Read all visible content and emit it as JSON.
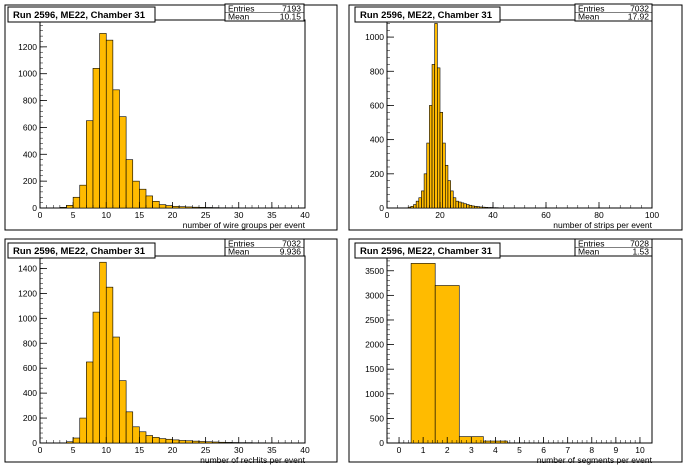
{
  "colors": {
    "fill": "#ffbb00",
    "edge": "#000000",
    "frame": "#000000",
    "background": "#ffffff"
  },
  "chart_data": [
    {
      "type": "bar",
      "title": "Run 2596, ME22, Chamber 31",
      "stats": {
        "entries_label": "Entries",
        "entries": "7193",
        "mean_label": "Mean",
        "mean": "10.15"
      },
      "xlabel": "number of wire groups per event",
      "xlim": [
        0,
        40
      ],
      "ylim": [
        0,
        1400
      ],
      "xticks": [
        0,
        5,
        10,
        15,
        20,
        25,
        30,
        35,
        40
      ],
      "yticks": [
        0,
        200,
        400,
        600,
        800,
        1000,
        1200
      ],
      "bin_width": 1,
      "bin_start": 3,
      "values": [
        5,
        20,
        80,
        170,
        650,
        1040,
        1300,
        1250,
        880,
        680,
        360,
        200,
        140,
        90,
        50,
        25,
        18,
        12,
        10,
        8,
        6,
        5,
        4,
        3,
        2,
        2,
        2
      ]
    },
    {
      "type": "bar",
      "title": "Run 2596, ME22, Chamber 31",
      "stats": {
        "entries_label": "Entries",
        "entries": "7032",
        "mean_label": "Mean",
        "mean": "17.92"
      },
      "xlabel": "number of strips per event",
      "xlim": [
        0,
        100
      ],
      "ylim": [
        0,
        1100
      ],
      "xticks": [
        0,
        20,
        40,
        60,
        80,
        100
      ],
      "yticks": [
        0,
        200,
        400,
        600,
        800,
        1000
      ],
      "bin_width": 1,
      "bin_start": 8,
      "values": [
        5,
        10,
        20,
        40,
        60,
        100,
        200,
        380,
        600,
        840,
        1080,
        820,
        560,
        380,
        250,
        160,
        100,
        60,
        40,
        35,
        30,
        25,
        20,
        16,
        12,
        10,
        8,
        6,
        5,
        4,
        3,
        3,
        2,
        2,
        1,
        1
      ]
    },
    {
      "type": "bar",
      "title": "Run 2596, ME22, Chamber 31",
      "stats": {
        "entries_label": "Entries",
        "entries": "7032",
        "mean_label": "Mean",
        "mean": "9.936"
      },
      "xlabel": "number of recHits per event",
      "xlim": [
        0,
        40
      ],
      "ylim": [
        0,
        1500
      ],
      "xticks": [
        0,
        5,
        10,
        15,
        20,
        25,
        30,
        35,
        40
      ],
      "yticks": [
        0,
        200,
        400,
        600,
        800,
        1000,
        1200,
        1400
      ],
      "bin_width": 1,
      "bin_start": 4,
      "values": [
        10,
        40,
        200,
        650,
        1050,
        1450,
        1250,
        850,
        500,
        250,
        130,
        90,
        60,
        45,
        35,
        30,
        25,
        20,
        18,
        15,
        12,
        10,
        8,
        6,
        5,
        4,
        3,
        3,
        2,
        2,
        1,
        1
      ]
    },
    {
      "type": "bar",
      "title": "Run 2596, ME22, Chamber 31",
      "stats": {
        "entries_label": "Entries",
        "entries": "7028",
        "mean_label": "Mean",
        "mean": "1.53"
      },
      "xlabel": "number of segments per event",
      "xlim": [
        -0.5,
        10.5
      ],
      "ylim": [
        0,
        3800
      ],
      "xticks": [
        0,
        1,
        2,
        3,
        4,
        5,
        6,
        7,
        8,
        9,
        10
      ],
      "yticks": [
        0,
        500,
        1000,
        1500,
        2000,
        2500,
        3000,
        3500
      ],
      "bin_width": 1,
      "bin_start": 0.5,
      "values": [
        3650,
        3200,
        130,
        40,
        5
      ]
    }
  ]
}
